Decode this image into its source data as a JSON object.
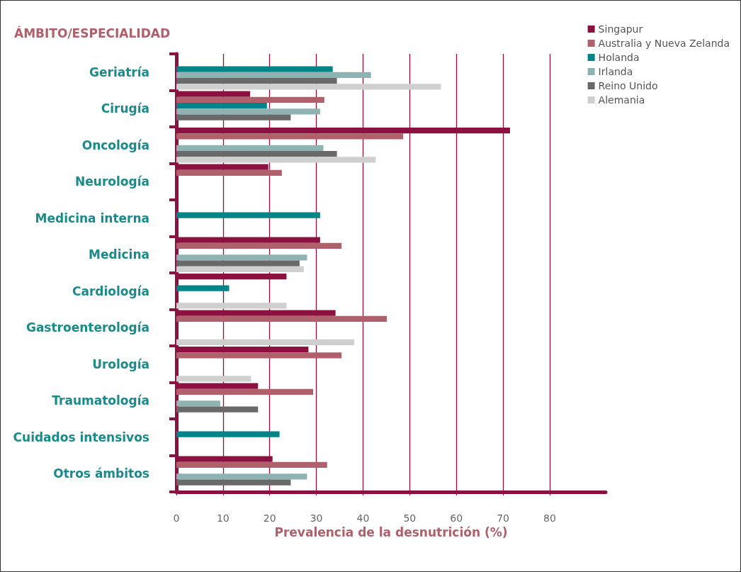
{
  "chart_data": {
    "type": "bar",
    "orientation": "horizontal",
    "title": "ÁMBITO/ESPECIALIDAD",
    "xlabel": "Prevalencia de la desnutrición (%)",
    "categories": [
      "Geriatría",
      "Cirugía",
      "Oncología",
      "Neurología",
      "Medicina interna",
      "Medicina",
      "Cardiología",
      "Gastroenterología",
      "Urología",
      "Traumatología",
      "Cuidados intensivos",
      "Otros ámbitos"
    ],
    "series": [
      {
        "name": "Singapur",
        "color": "#8b1240",
        "values": [
          null,
          15.8,
          71.5,
          19.7,
          null,
          30.8,
          23.6,
          34.1,
          28.3,
          17.5,
          null,
          20.6
        ]
      },
      {
        "name": "Australia y Nueva Zelanda",
        "color": "#b0606b",
        "values": [
          null,
          31.7,
          48.6,
          22.6,
          null,
          35.4,
          null,
          45.1,
          35.4,
          29.3,
          null,
          32.3
        ]
      },
      {
        "name": "Holanda",
        "color": "#008487",
        "values": [
          33.5,
          19.4,
          null,
          null,
          30.8,
          null,
          11.3,
          null,
          null,
          null,
          22.1,
          null
        ]
      },
      {
        "name": "Irlanda",
        "color": "#8fb3b3",
        "values": [
          41.7,
          30.8,
          31.5,
          null,
          null,
          28,
          null,
          null,
          null,
          9.4,
          null,
          28
        ]
      },
      {
        "name": "Reino Unido",
        "color": "#696969",
        "values": [
          34.4,
          24.5,
          34.4,
          null,
          null,
          26.4,
          null,
          null,
          null,
          17.5,
          null,
          24.5
        ]
      },
      {
        "name": "Alemania",
        "color": "#cfcfcf",
        "values": [
          56.7,
          null,
          42.7,
          null,
          null,
          27.3,
          23.6,
          38.1,
          16,
          null,
          null,
          null
        ]
      }
    ],
    "xlim": [
      0,
      92
    ],
    "xticks": [
      0,
      10,
      20,
      30,
      40,
      50,
      60,
      70,
      80
    ],
    "grid": "x",
    "legend": "top right"
  }
}
